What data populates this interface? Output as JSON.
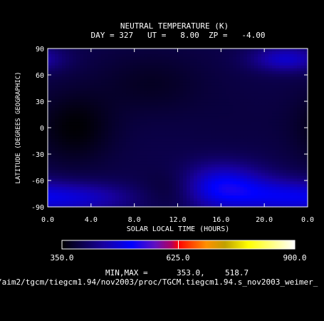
{
  "chart_data": {
    "type": "heatmap",
    "title": "NEUTRAL TEMPERATURE (K)",
    "subtitle": "DAY = 327   UT =   8.00  ZP =   -4.00",
    "xlabel": "SOLAR LOCAL TIME (HOURS)",
    "ylabel": "LATITUDE (DEGREES GEOGRAPHIC)",
    "xlim": [
      0,
      24
    ],
    "ylim": [
      -90,
      90
    ],
    "x_ticks": [
      "0.0",
      "4.0",
      "8.0",
      "12.0",
      "16.0",
      "20.0",
      "0.0"
    ],
    "y_ticks": [
      "90",
      "60",
      "30",
      "0",
      "-30",
      "-60",
      "-90"
    ],
    "colorbar": {
      "min": 350.0,
      "max": 900.0,
      "labels": [
        "350.0",
        "625.0",
        "900.0"
      ]
    },
    "min_max_label": "MIN,MAX =",
    "min_value": "353.0,",
    "max_value": "518.7",
    "features": [
      {
        "x": 2.5,
        "y": 0,
        "value": 353,
        "sx": 2.5,
        "sy": 28
      },
      {
        "x": 12.0,
        "y": -70,
        "value": 360,
        "sx": 2.0,
        "sy": 16
      },
      {
        "x": 9.5,
        "y": 50,
        "value": 372,
        "sx": 3.5,
        "sy": 25
      },
      {
        "x": 16.0,
        "y": -68,
        "value": 518,
        "sx": 2.8,
        "sy": 18
      },
      {
        "x": 3.0,
        "y": -80,
        "value": 470,
        "sx": 3.5,
        "sy": 12
      },
      {
        "x": 21.5,
        "y": -78,
        "value": 470,
        "sx": 3.0,
        "sy": 14
      },
      {
        "x": 22.0,
        "y": 78,
        "value": 478,
        "sx": 2.2,
        "sy": 10
      },
      {
        "x": 17.5,
        "y": 10,
        "value": 390,
        "sx": 3.5,
        "sy": 30
      }
    ]
  },
  "path_text": "/aim2/tgcm/tiegcm1.94/nov2003/proc/TGCM.tiegcm1.94.s_nov2003_weimer_"
}
